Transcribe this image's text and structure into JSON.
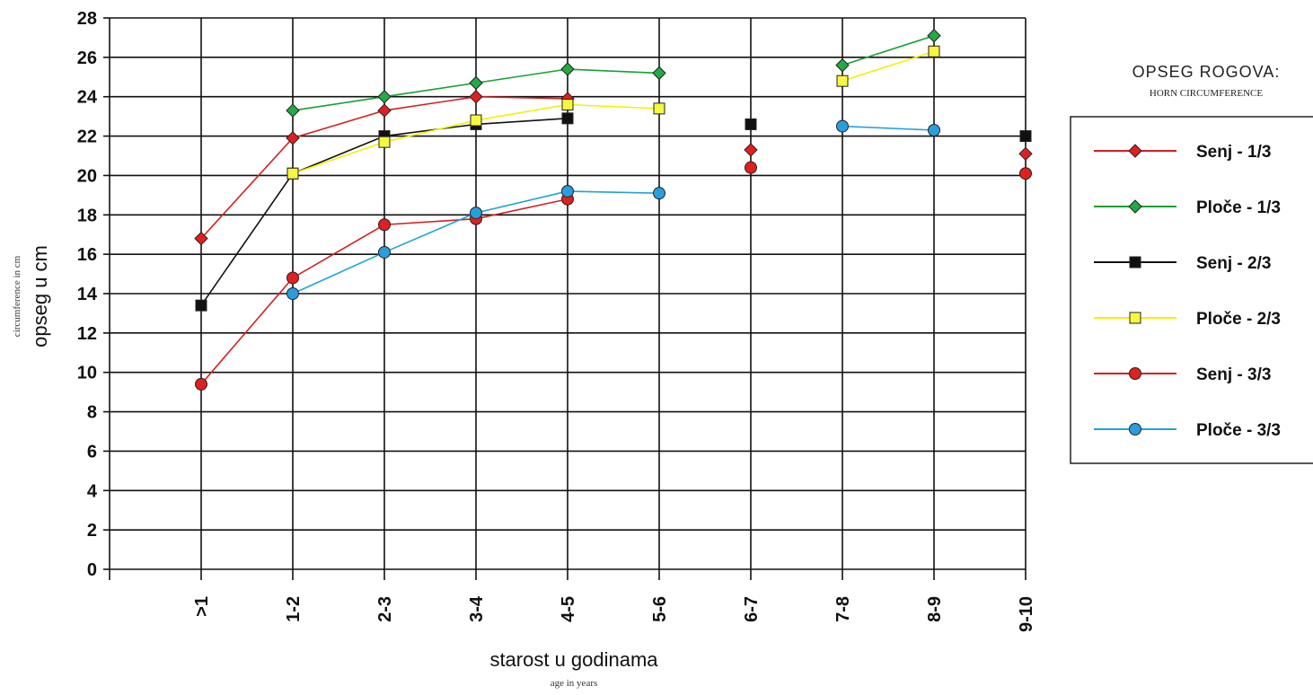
{
  "chart_data": {
    "type": "line",
    "title": "OPSEG ROGOVA:",
    "subtitle": "HORN CIRCUMFERENCE",
    "xlabel": "starost u godinama",
    "xlabel_sub": "age in years",
    "ylabel": "opseg u cm",
    "ylabel_sub": "circumference in cm",
    "ylim": [
      0,
      28
    ],
    "yticks": [
      0,
      2,
      4,
      6,
      8,
      10,
      12,
      14,
      16,
      18,
      20,
      22,
      24,
      26,
      28
    ],
    "grid": true,
    "legend_position": "right",
    "categories": [
      ">1",
      "1-2",
      "2-3",
      "3-4",
      "4-5",
      "5-6",
      "6-7",
      "7-8",
      "8-9",
      "9-10"
    ],
    "series": [
      {
        "name": "Senj - 1/3",
        "line_color": "#d42020",
        "marker": "diamond",
        "marker_color": "#e02020",
        "values": [
          16.8,
          21.9,
          23.3,
          24.0,
          23.9,
          null,
          21.3,
          null,
          null,
          21.1
        ]
      },
      {
        "name": "Ploče - 1/3",
        "line_color": "#19a033",
        "marker": "diamond",
        "marker_color": "#22aa44",
        "values": [
          null,
          23.3,
          24.0,
          24.7,
          25.4,
          25.2,
          null,
          25.6,
          27.1,
          null
        ]
      },
      {
        "name": "Senj - 2/3",
        "line_color": "#111111",
        "marker": "square",
        "marker_color": "#111111",
        "values": [
          13.4,
          20.1,
          22.0,
          22.6,
          22.9,
          null,
          22.6,
          null,
          null,
          22.0
        ]
      },
      {
        "name": "Ploče - 2/3",
        "line_color": "#f2f200",
        "marker": "square",
        "marker_color": "#f7f740",
        "values": [
          null,
          20.1,
          21.7,
          22.8,
          23.6,
          23.4,
          null,
          24.8,
          26.3,
          null
        ]
      },
      {
        "name": "Senj - 3/3",
        "line_color": "#d42020",
        "marker": "circle",
        "marker_color": "#e02020",
        "values": [
          9.4,
          14.8,
          17.5,
          17.8,
          18.8,
          null,
          20.4,
          null,
          null,
          20.1
        ]
      },
      {
        "name": "Ploče - 3/3",
        "line_color": "#1fa2d8",
        "marker": "circle",
        "marker_color": "#2a9ddb",
        "values": [
          null,
          14.0,
          16.1,
          18.1,
          19.2,
          19.1,
          null,
          22.5,
          22.3,
          null
        ]
      }
    ]
  }
}
